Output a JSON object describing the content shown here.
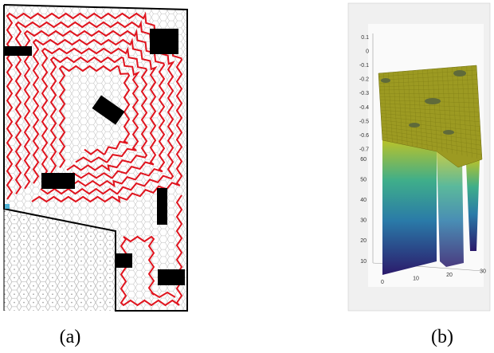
{
  "figure": {
    "panels": [
      {
        "caption": "(a)"
      },
      {
        "caption": "(b)",
        "zticks": [
          0.1,
          0,
          -0.1,
          -0.2,
          -0.3,
          -0.4,
          -0.5,
          -0.6,
          -0.7
        ],
        "yticks": [
          60,
          50,
          40,
          30,
          20,
          10
        ],
        "xticks": [
          0,
          10,
          20,
          30
        ]
      }
    ]
  }
}
